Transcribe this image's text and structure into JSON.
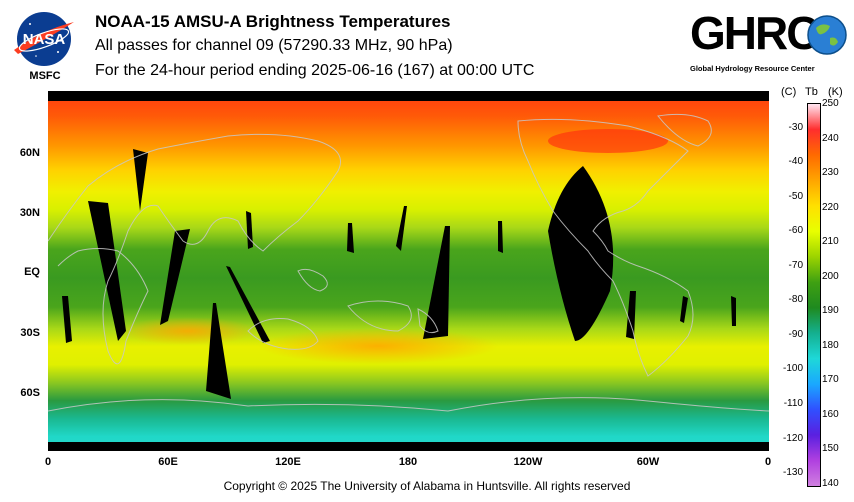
{
  "header": {
    "title": "NOAA-15 AMSU-A Brightness Temperatures",
    "subtitle_line1": "All passes for channel 09 (57290.33 MHz, 90 hPa)",
    "subtitle_line2": "For the 24-hour period ending 2025-06-16 (167) at 00:00 UTC"
  },
  "logos": {
    "nasa_text": "NASA",
    "nasa_sub": "MSFC",
    "ghrc_word": "GHRC",
    "ghrc_sub": "Global Hydrology Resource Center"
  },
  "map": {
    "lat_labels": [
      "60N",
      "30N",
      "EQ",
      "30S",
      "60S"
    ],
    "lon_labels": [
      "0",
      "60E",
      "120E",
      "180",
      "120W",
      "60W",
      "0"
    ]
  },
  "colorbar": {
    "unit_c": "(C)",
    "unit_tb": "Tb",
    "unit_k": "(K)",
    "celsius_labels": [
      "-30",
      "-40",
      "-50",
      "-60",
      "-70",
      "-80",
      "-90",
      "-100",
      "-110",
      "-120",
      "-130"
    ],
    "kelvin_labels": [
      "250",
      "240",
      "230",
      "220",
      "210",
      "200",
      "190",
      "180",
      "170",
      "160",
      "150",
      "140"
    ],
    "colors": [
      "#ffe6f2",
      "#ff2e2e",
      "#ff6a00",
      "#ffa500",
      "#ffe000",
      "#e8ff00",
      "#9cd400",
      "#3fa012",
      "#1f8a1f",
      "#14b090",
      "#1ed8d8",
      "#1aa8ff",
      "#3050ff",
      "#5a20e0",
      "#b040e0",
      "#d080e0"
    ]
  },
  "footer": {
    "copyright": "Copyright © 2025 The University of Alabama in Huntsville.  All rights reserved"
  }
}
